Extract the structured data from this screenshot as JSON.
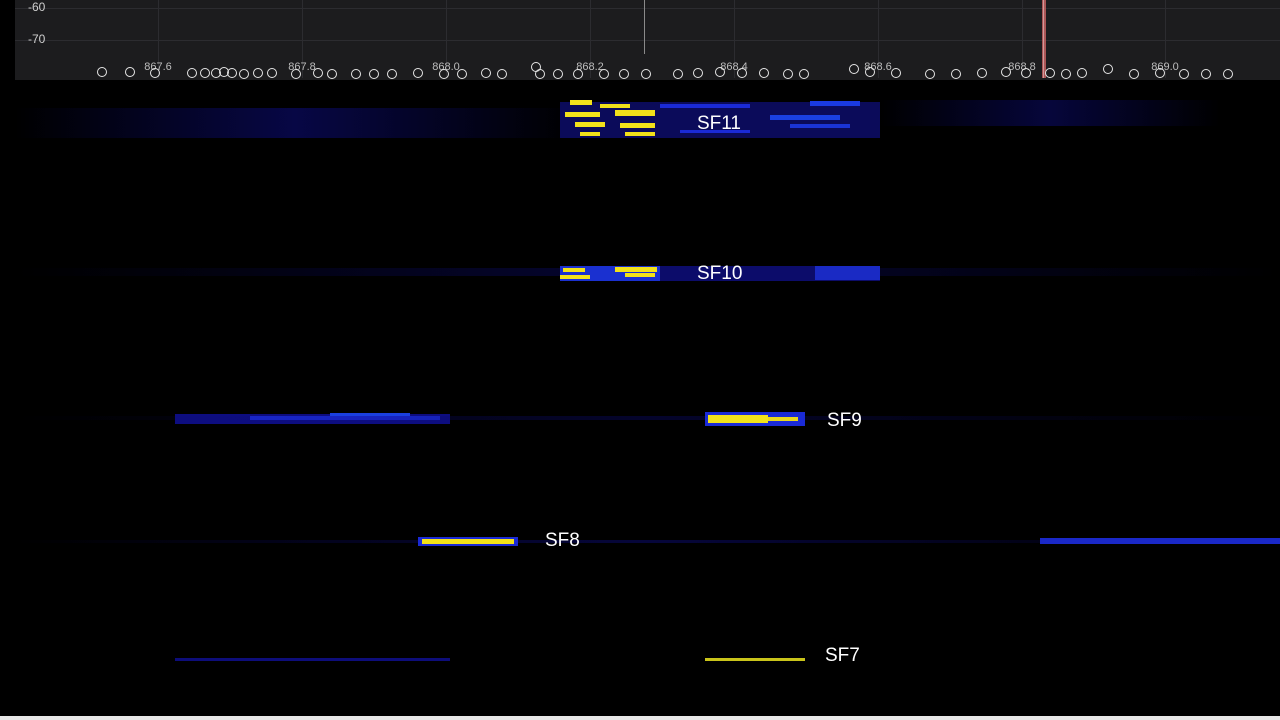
{
  "spectrum": {
    "y_ticks": [
      "-60",
      "-70"
    ],
    "x_ticks": [
      "867.6",
      "867.8",
      "868.0",
      "868.2",
      "868.4",
      "868.6",
      "868.8",
      "869.0"
    ],
    "marker_label": "868.8"
  },
  "waterfall": {
    "labels": {
      "sf11": "SF11",
      "sf10": "SF10",
      "sf9": "SF9",
      "sf8": "SF8",
      "sf7": "SF7"
    }
  },
  "colors": {
    "background": "#000000",
    "plot_background": "#1c1c1e",
    "signal_strong": "#f2e21a",
    "signal_weak": "#1a1ad6",
    "signal_faint": "#0b0b6e",
    "marker": "#c46060",
    "label_text": "#ffffff"
  }
}
